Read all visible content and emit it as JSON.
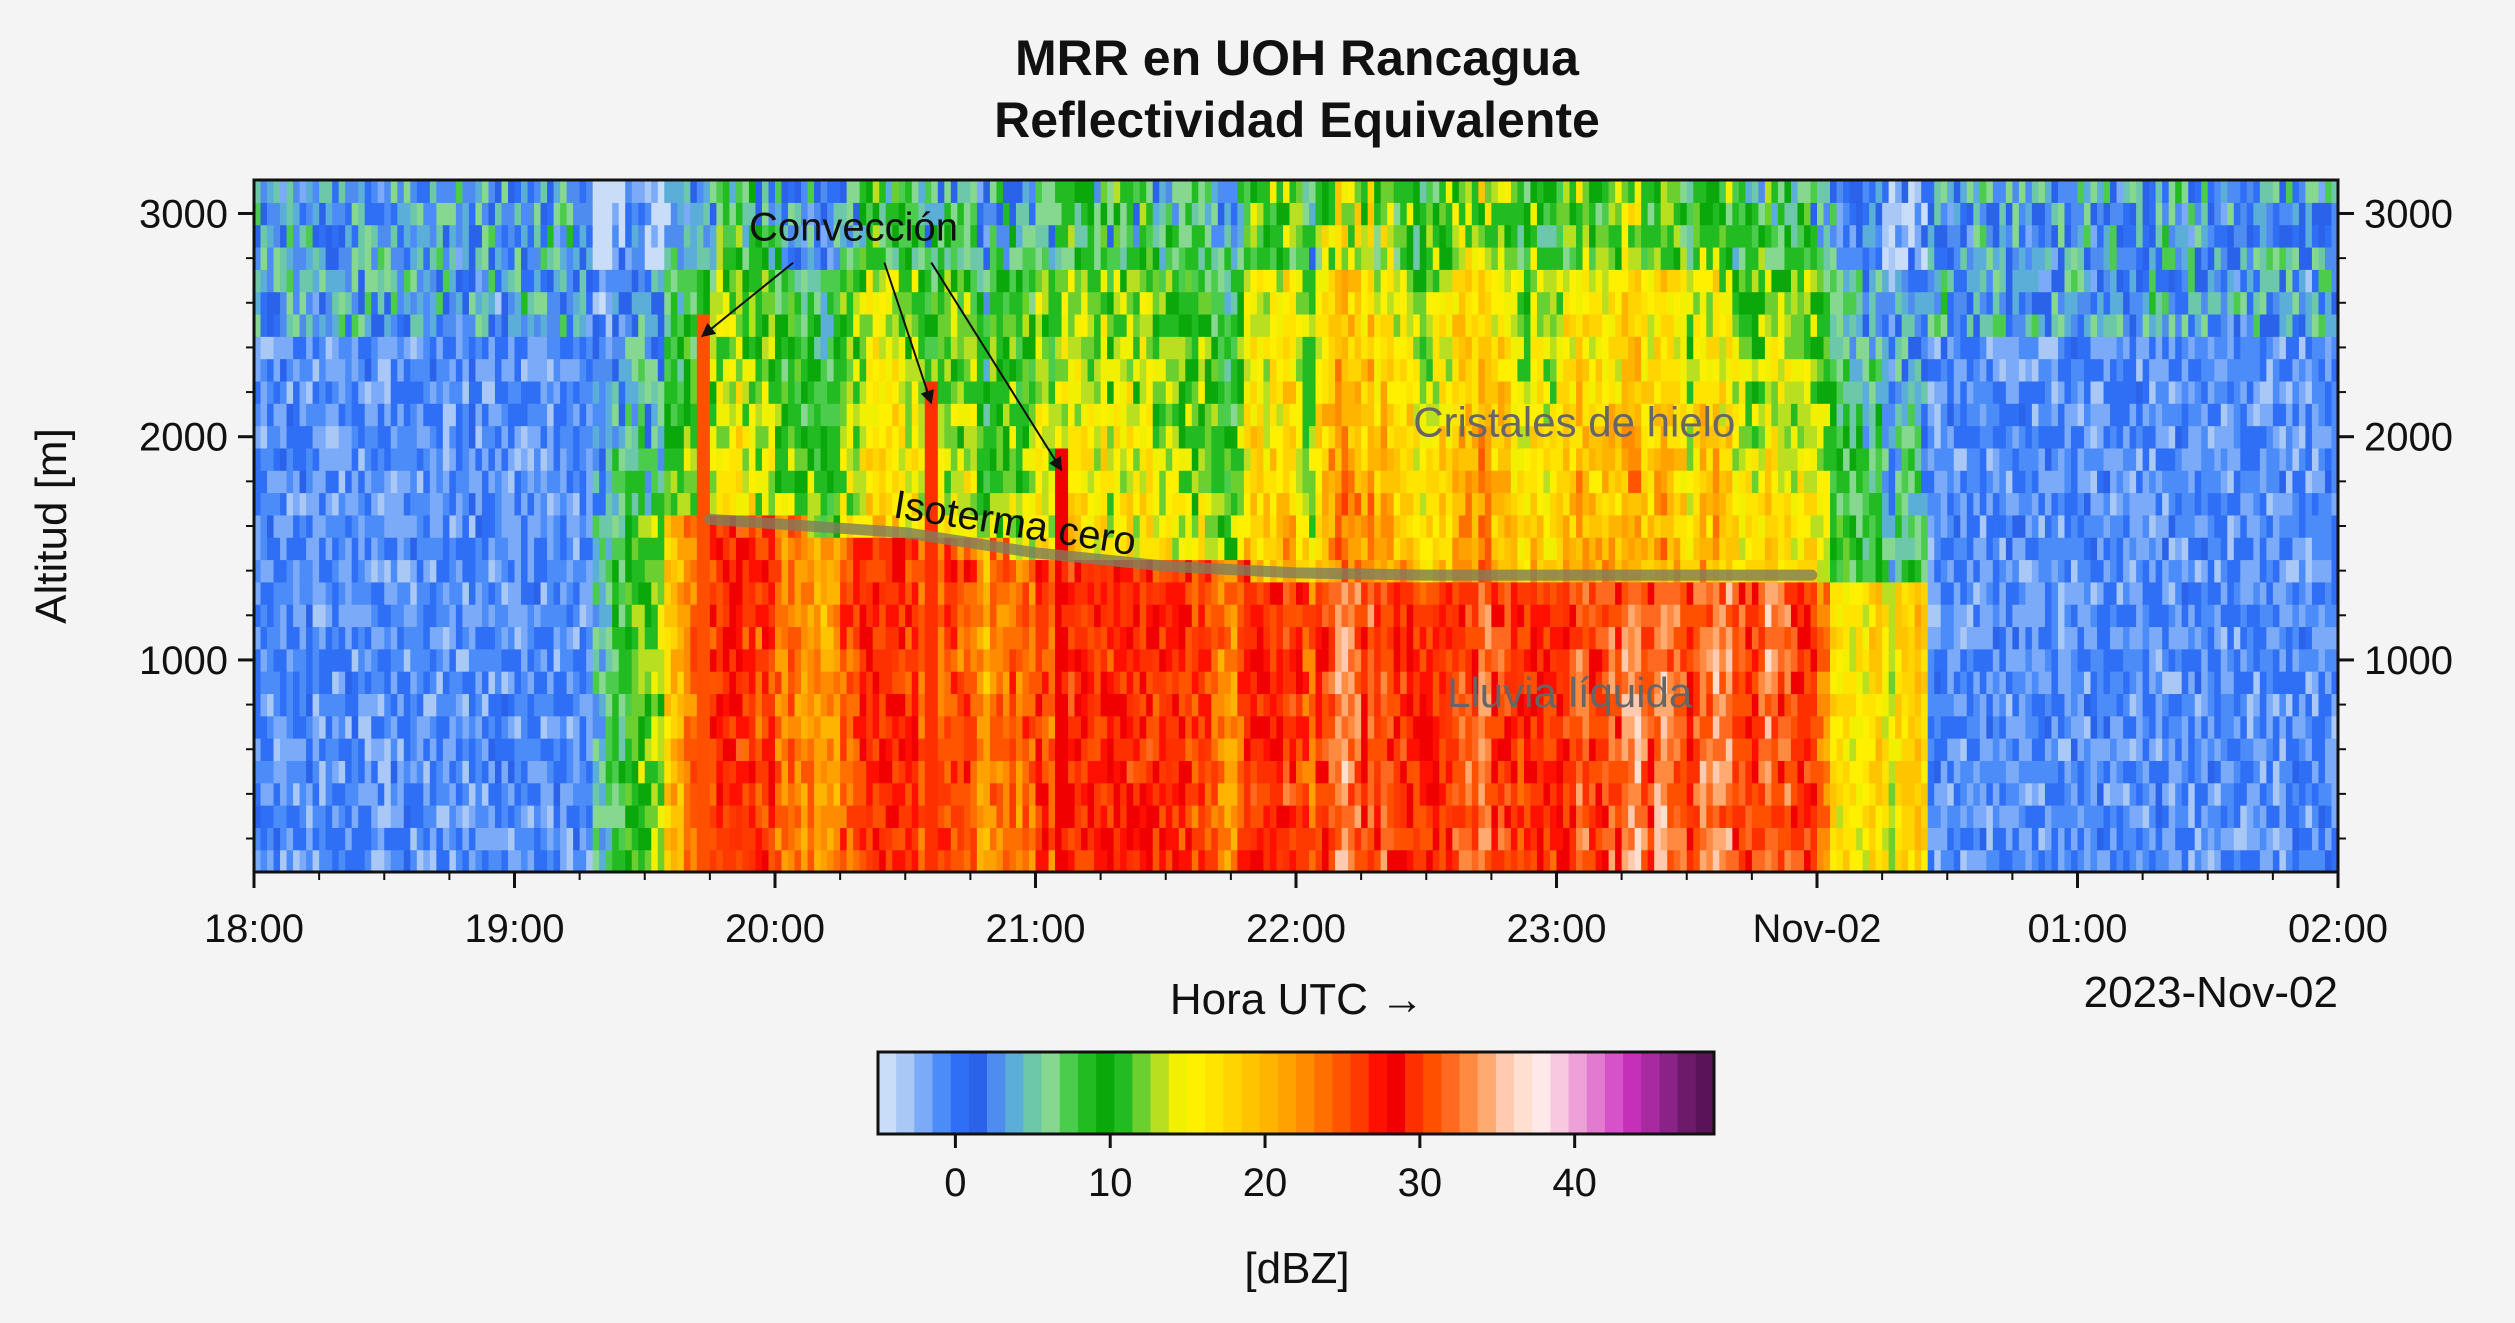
{
  "chart_data": {
    "type": "heatmap",
    "title_line1": "MRR en UOH Rancagua",
    "title_line2": "Reflectividad Equivalente",
    "ylabel": "Altitud [m]",
    "xlabel": "Hora UTC →",
    "date_label": "2023-Nov-02",
    "x_ticks": [
      "18:00",
      "19:00",
      "20:00",
      "21:00",
      "22:00",
      "23:00",
      "Nov-02",
      "01:00",
      "02:00"
    ],
    "x_range_hours": [
      18,
      26
    ],
    "y_ticks": [
      1000,
      2000,
      3000
    ],
    "y_range": [
      50,
      3150
    ],
    "colorbar": {
      "label": "[dBZ]",
      "ticks": [
        0,
        10,
        20,
        30,
        40
      ],
      "range": [
        -5,
        49
      ],
      "colors": [
        "#c9dcf8",
        "#a9c8f6",
        "#7aaaf8",
        "#4b8cf8",
        "#2f6ff6",
        "#2a62ea",
        "#4f8cf0",
        "#5aaed8",
        "#6cc8a8",
        "#86d890",
        "#4ccc4c",
        "#22bb22",
        "#0aa80a",
        "#22bb22",
        "#6ccf30",
        "#b8e020",
        "#f0f000",
        "#fff000",
        "#ffe400",
        "#ffd400",
        "#ffc400",
        "#ffb400",
        "#ffa200",
        "#ff8c00",
        "#ff7000",
        "#ff5400",
        "#ff3a00",
        "#ff1000",
        "#f00000",
        "#ff3000",
        "#ff5000",
        "#ff6a20",
        "#ff8a40",
        "#ffaa70",
        "#ffcab0",
        "#ffe0d0",
        "#ffe8e8",
        "#f8c8e0",
        "#eea0d8",
        "#e27ad0",
        "#d652c8",
        "#c430b8",
        "#a82aa0",
        "#8a2288",
        "#6e1a6a",
        "#5a1258"
      ]
    },
    "annotations": {
      "convection": "Convección",
      "ice": "Cristales de hielo",
      "zero_isotherm": "Isoterma cero",
      "rain": "Lluvia líquida"
    },
    "melting_layer": {
      "x_hours": [
        19.75,
        20.5,
        21.0,
        21.5,
        22.0,
        22.5,
        23.0,
        23.5,
        23.98
      ],
      "y_m": [
        1630,
        1570,
        1480,
        1420,
        1390,
        1380,
        1380,
        1380,
        1380
      ]
    },
    "precip_profile": {
      "x_hours": [
        18.0,
        19.0,
        19.45,
        19.7,
        20.0,
        20.5,
        21.0,
        21.5,
        22.0,
        22.5,
        23.0,
        23.5,
        23.9,
        24.1,
        24.5,
        24.8,
        25.0,
        26.0
      ],
      "snow_dbz": [
        -2,
        -1,
        8,
        12,
        16,
        16,
        15,
        17,
        21,
        21,
        21,
        20,
        18,
        9,
        4,
        1,
        -1,
        -1
      ],
      "rain_dbz": [
        -2,
        -1,
        10,
        24,
        27,
        26,
        25,
        29,
        30,
        30,
        30,
        32,
        33,
        14,
        18,
        24,
        3,
        -1
      ],
      "top_m": [
        3150,
        3150,
        3150,
        3150,
        3150,
        3150,
        3150,
        3150,
        3150,
        3150,
        3150,
        3150,
        3150,
        3150,
        3150,
        3150,
        3150,
        3150
      ]
    },
    "convective_cells": [
      {
        "x_hours": 19.72,
        "top_m": 2550,
        "dbz": 31
      },
      {
        "x_hours": 20.6,
        "top_m": 2250,
        "dbz": 30
      },
      {
        "x_hours": 21.1,
        "top_m": 1950,
        "dbz": 29
      }
    ]
  }
}
